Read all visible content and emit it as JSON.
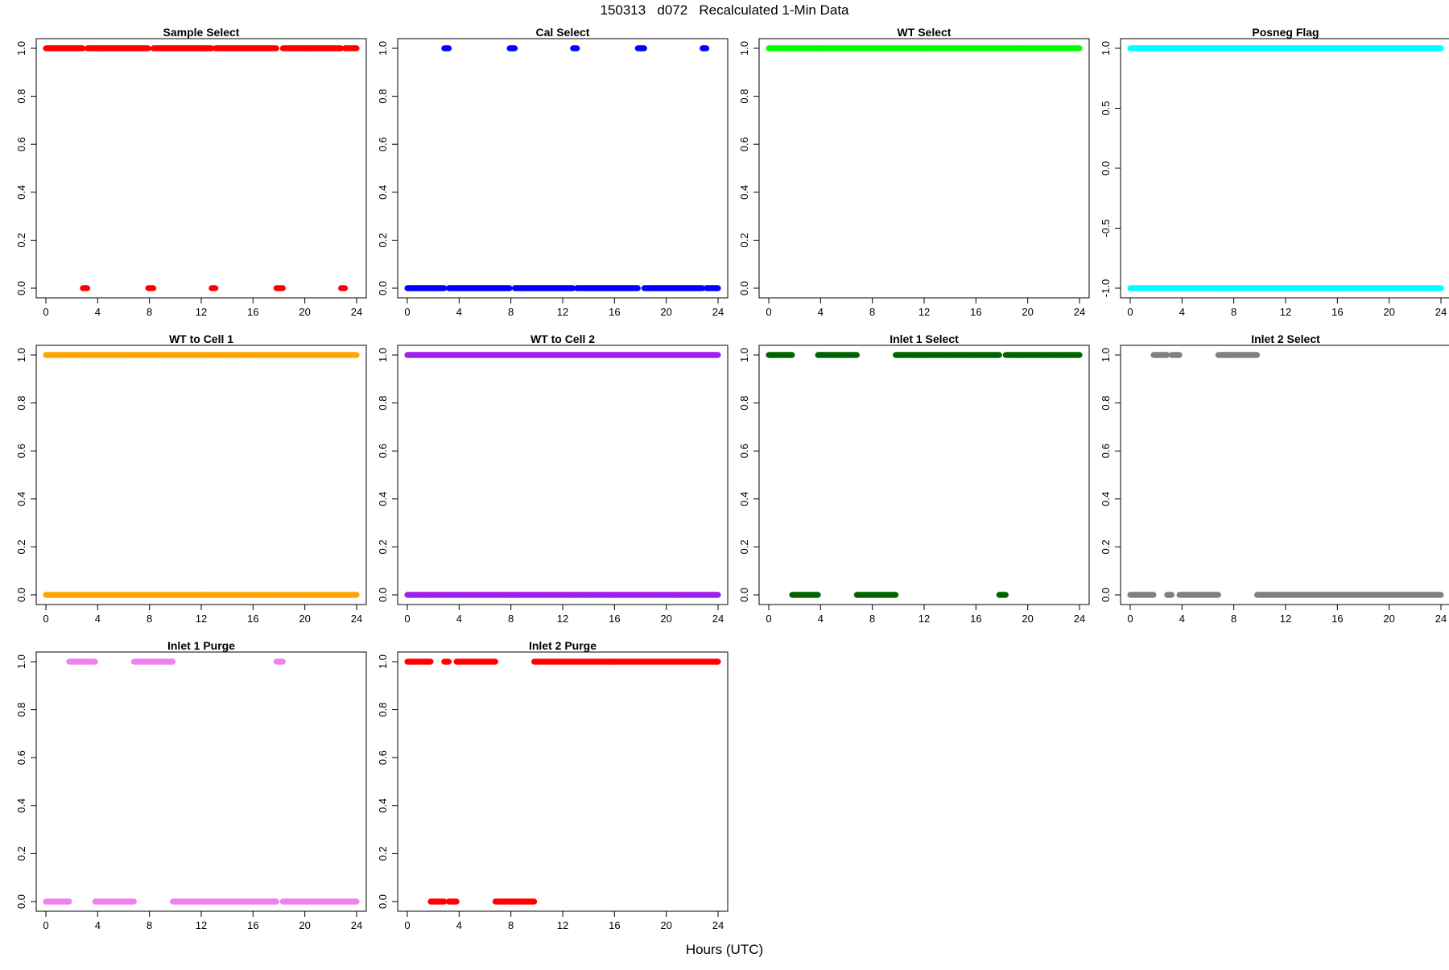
{
  "page": {
    "title": "150313   d072   Recalculated 1-Min Data",
    "xlabel": "Hours (UTC)"
  },
  "chart_data": [
    {
      "type": "scatter",
      "title": "Sample Select",
      "color": "#ff0000",
      "xlim": [
        0,
        24
      ],
      "ylim": [
        0,
        1
      ],
      "xticks": [
        "0",
        "4",
        "8",
        "12",
        "16",
        "20",
        "24"
      ],
      "yticks": [
        "0.0",
        "0.2",
        "0.4",
        "0.6",
        "0.8",
        "1.0"
      ],
      "series": [
        {
          "y": 1,
          "x_ranges": [
            [
              0,
              2.85
            ],
            [
              3.2,
              7.9
            ],
            [
              8.3,
              12.8
            ],
            [
              13.1,
              17.8
            ],
            [
              18.3,
              22.8
            ],
            [
              23.1,
              24
            ]
          ]
        },
        {
          "y": 0,
          "x_ranges": [
            [
              2.85,
              3.2
            ],
            [
              7.9,
              8.3
            ],
            [
              12.8,
              13.1
            ],
            [
              17.8,
              18.3
            ],
            [
              22.8,
              23.1
            ]
          ]
        }
      ]
    },
    {
      "type": "scatter",
      "title": "Cal Select",
      "color": "#0000ff",
      "xlim": [
        0,
        24
      ],
      "ylim": [
        0,
        1
      ],
      "xticks": [
        "0",
        "4",
        "8",
        "12",
        "16",
        "20",
        "24"
      ],
      "yticks": [
        "0.0",
        "0.2",
        "0.4",
        "0.6",
        "0.8",
        "1.0"
      ],
      "series": [
        {
          "y": 1,
          "x_ranges": [
            [
              2.85,
              3.2
            ],
            [
              7.9,
              8.3
            ],
            [
              12.8,
              13.1
            ],
            [
              17.8,
              18.3
            ],
            [
              22.8,
              23.1
            ]
          ]
        },
        {
          "y": 0,
          "x_ranges": [
            [
              0,
              2.85
            ],
            [
              3.2,
              7.9
            ],
            [
              8.3,
              12.8
            ],
            [
              13.1,
              17.8
            ],
            [
              18.3,
              22.8
            ],
            [
              23.1,
              24
            ]
          ]
        }
      ]
    },
    {
      "type": "scatter",
      "title": "WT Select",
      "color": "#00ff00",
      "xlim": [
        0,
        24
      ],
      "ylim": [
        0,
        1
      ],
      "xticks": [
        "0",
        "4",
        "8",
        "12",
        "16",
        "20",
        "24"
      ],
      "yticks": [
        "0.0",
        "0.2",
        "0.4",
        "0.6",
        "0.8",
        "1.0"
      ],
      "series": [
        {
          "y": 1,
          "x_ranges": [
            [
              0,
              24
            ]
          ]
        }
      ]
    },
    {
      "type": "scatter",
      "title": "Posneg Flag",
      "color": "#00ffff",
      "xlim": [
        0,
        24
      ],
      "ylim": [
        -1,
        1
      ],
      "xticks": [
        "0",
        "4",
        "8",
        "12",
        "16",
        "20",
        "24"
      ],
      "yticks": [
        "-1.0",
        "-0.5",
        "0.0",
        "0.5",
        "1.0"
      ],
      "series": [
        {
          "y": 1,
          "x_ranges": [
            [
              0,
              24
            ]
          ]
        },
        {
          "y": -1,
          "x_ranges": [
            [
              0,
              24
            ]
          ]
        }
      ]
    },
    {
      "type": "scatter",
      "title": "WT to Cell 1",
      "color": "#ffa500",
      "xlim": [
        0,
        24
      ],
      "ylim": [
        0,
        1
      ],
      "xticks": [
        "0",
        "4",
        "8",
        "12",
        "16",
        "20",
        "24"
      ],
      "yticks": [
        "0.0",
        "0.2",
        "0.4",
        "0.6",
        "0.8",
        "1.0"
      ],
      "series": [
        {
          "y": 1,
          "x_ranges": [
            [
              0,
              24
            ]
          ]
        },
        {
          "y": 0,
          "x_ranges": [
            [
              0,
              24
            ]
          ]
        }
      ]
    },
    {
      "type": "scatter",
      "title": "WT to Cell 2",
      "color": "#a020f0",
      "xlim": [
        0,
        24
      ],
      "ylim": [
        0,
        1
      ],
      "xticks": [
        "0",
        "4",
        "8",
        "12",
        "16",
        "20",
        "24"
      ],
      "yticks": [
        "0.0",
        "0.2",
        "0.4",
        "0.6",
        "0.8",
        "1.0"
      ],
      "series": [
        {
          "y": 1,
          "x_ranges": [
            [
              0,
              24
            ]
          ]
        },
        {
          "y": 0,
          "x_ranges": [
            [
              0,
              24
            ]
          ]
        }
      ]
    },
    {
      "type": "scatter",
      "title": "Inlet 1 Select",
      "color": "#006400",
      "xlim": [
        0,
        24
      ],
      "ylim": [
        0,
        1
      ],
      "xticks": [
        "0",
        "4",
        "8",
        "12",
        "16",
        "20",
        "24"
      ],
      "yticks": [
        "0.0",
        "0.2",
        "0.4",
        "0.6",
        "0.8",
        "1.0"
      ],
      "series": [
        {
          "y": 1,
          "x_ranges": [
            [
              0,
              1.8
            ],
            [
              3.8,
              6.8
            ],
            [
              9.8,
              17.8
            ],
            [
              18.3,
              24
            ]
          ]
        },
        {
          "y": 0,
          "x_ranges": [
            [
              1.8,
              3.8
            ],
            [
              6.8,
              9.8
            ],
            [
              17.8,
              18.3
            ]
          ]
        }
      ]
    },
    {
      "type": "scatter",
      "title": "Inlet 2 Select",
      "color": "#808080",
      "xlim": [
        0,
        24
      ],
      "ylim": [
        0,
        1
      ],
      "xticks": [
        "0",
        "4",
        "8",
        "12",
        "16",
        "20",
        "24"
      ],
      "yticks": [
        "0.0",
        "0.2",
        "0.4",
        "0.6",
        "0.8",
        "1.0"
      ],
      "series": [
        {
          "y": 1,
          "x_ranges": [
            [
              1.8,
              2.85
            ],
            [
              3.2,
              3.8
            ],
            [
              6.8,
              9.8
            ]
          ]
        },
        {
          "y": 0,
          "x_ranges": [
            [
              0,
              1.8
            ],
            [
              2.85,
              3.2
            ],
            [
              3.8,
              6.8
            ],
            [
              9.8,
              24
            ]
          ]
        }
      ]
    },
    {
      "type": "scatter",
      "title": "Inlet 1 Purge",
      "color": "#ee82ee",
      "xlim": [
        0,
        24
      ],
      "ylim": [
        0,
        1
      ],
      "xticks": [
        "0",
        "4",
        "8",
        "12",
        "16",
        "20",
        "24"
      ],
      "yticks": [
        "0.0",
        "0.2",
        "0.4",
        "0.6",
        "0.8",
        "1.0"
      ],
      "series": [
        {
          "y": 1,
          "x_ranges": [
            [
              1.8,
              3.8
            ],
            [
              6.8,
              9.8
            ],
            [
              17.8,
              18.3
            ]
          ]
        },
        {
          "y": 0,
          "x_ranges": [
            [
              0,
              1.8
            ],
            [
              3.8,
              6.8
            ],
            [
              9.8,
              17.8
            ],
            [
              18.3,
              24
            ]
          ]
        }
      ]
    },
    {
      "type": "scatter",
      "title": "Inlet 2 Purge",
      "color": "#ff0000",
      "xlim": [
        0,
        24
      ],
      "ylim": [
        0,
        1
      ],
      "xticks": [
        "0",
        "4",
        "8",
        "12",
        "16",
        "20",
        "24"
      ],
      "yticks": [
        "0.0",
        "0.2",
        "0.4",
        "0.6",
        "0.8",
        "1.0"
      ],
      "series": [
        {
          "y": 1,
          "x_ranges": [
            [
              0,
              1.8
            ],
            [
              2.85,
              3.2
            ],
            [
              3.8,
              6.8
            ],
            [
              9.8,
              24
            ]
          ]
        },
        {
          "y": 0,
          "x_ranges": [
            [
              1.8,
              2.85
            ],
            [
              3.2,
              3.8
            ],
            [
              6.8,
              9.8
            ]
          ]
        }
      ]
    }
  ]
}
